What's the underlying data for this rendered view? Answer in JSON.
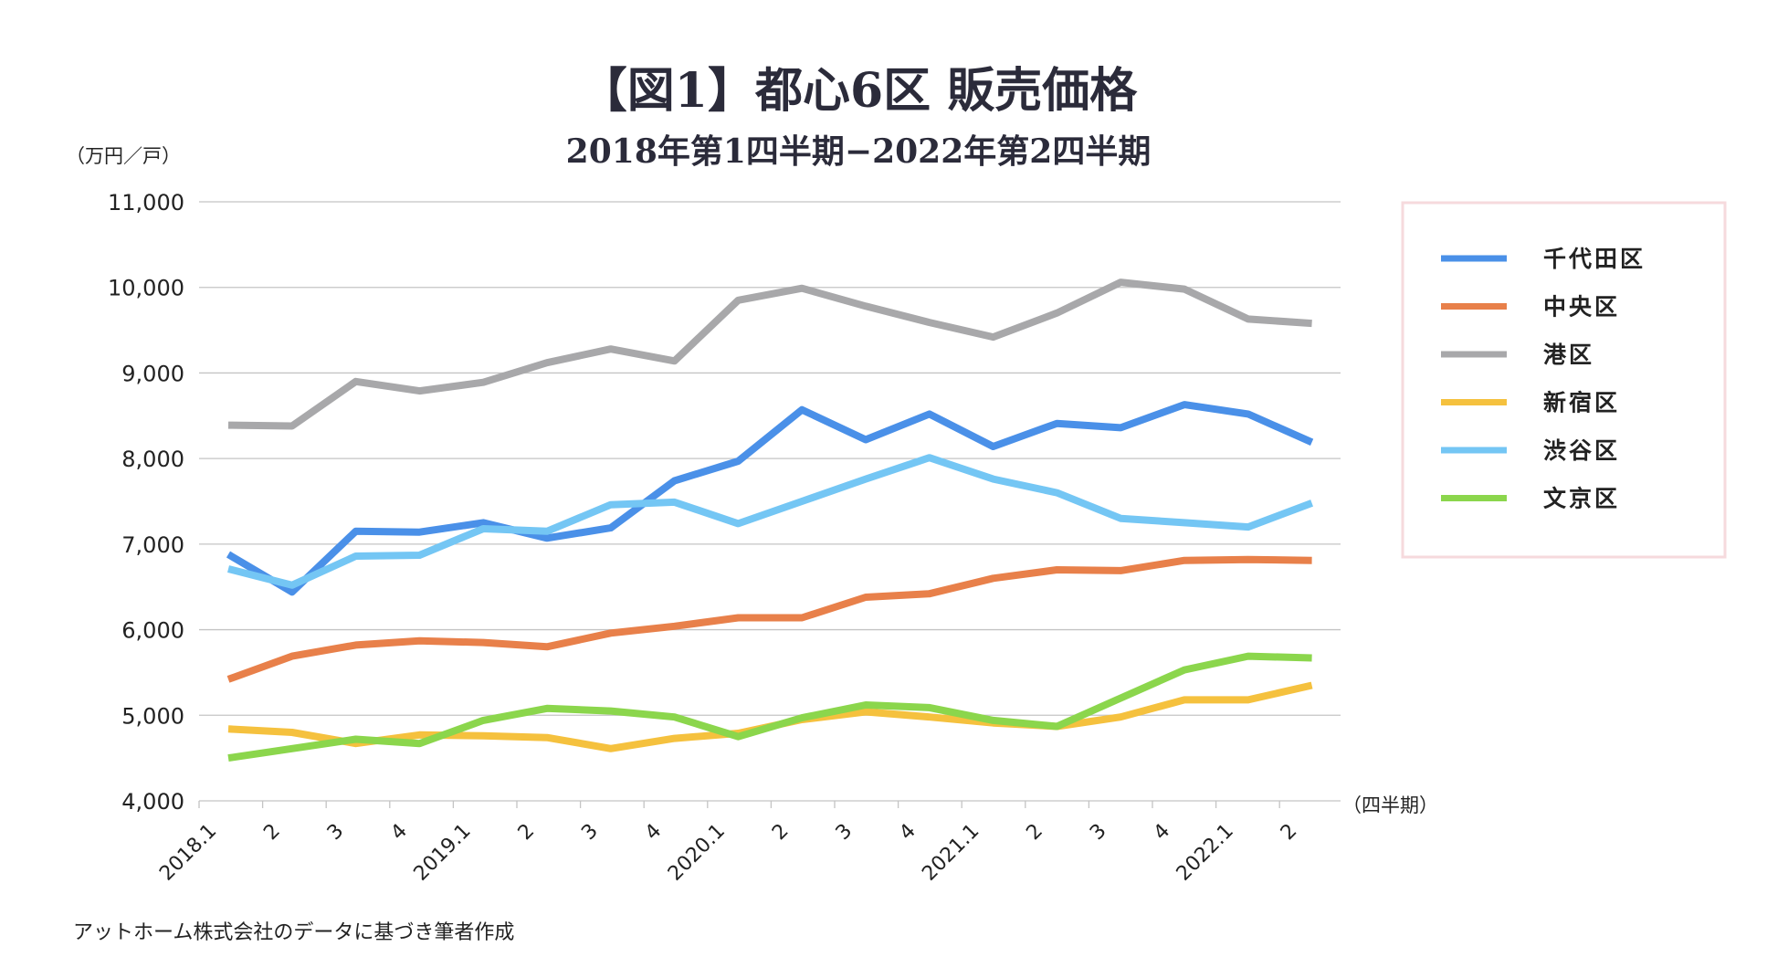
{
  "chart_data": {
    "type": "line",
    "title": "【図1】都心6区 販売価格",
    "subtitle": "2018年第1四半期−2022年第2四半期",
    "ylabel": "（万円／戸）",
    "xlabel": "（四半期）",
    "ylim": [
      4000,
      11000
    ],
    "yticks": [
      4000,
      5000,
      6000,
      7000,
      8000,
      9000,
      10000,
      11000
    ],
    "ytick_labels": [
      "4,000",
      "5,000",
      "6,000",
      "7,000",
      "8,000",
      "9,000",
      "10,000",
      "11,000"
    ],
    "categories": [
      "2018.1",
      "2",
      "3",
      "4",
      "2019.1",
      "2",
      "3",
      "4",
      "2020.1",
      "2",
      "3",
      "4",
      "2021.1",
      "2",
      "3",
      "4",
      "2022.1",
      "2"
    ],
    "grid": true,
    "legend_position": "right",
    "series": [
      {
        "name": "千代田区",
        "color": "#4a90e8",
        "values": [
          6880,
          6440,
          7150,
          7140,
          7250,
          7070,
          7190,
          7740,
          7970,
          8570,
          8220,
          8520,
          8140,
          8410,
          8360,
          8630,
          8520,
          8190
        ]
      },
      {
        "name": "中央区",
        "color": "#e8804a",
        "values": [
          5420,
          5690,
          5820,
          5870,
          5850,
          5800,
          5960,
          6040,
          6140,
          6140,
          6380,
          6420,
          6600,
          6700,
          6690,
          6810,
          6820,
          6810
        ]
      },
      {
        "name": "港区",
        "color": "#a8a8aa",
        "values": [
          8390,
          8380,
          8900,
          8790,
          8890,
          9120,
          9280,
          9140,
          9850,
          9990,
          9780,
          9590,
          9420,
          9700,
          10060,
          9980,
          9630,
          9580
        ]
      },
      {
        "name": "新宿区",
        "color": "#f5c13e",
        "values": [
          4840,
          4800,
          4670,
          4770,
          4760,
          4740,
          4610,
          4730,
          4790,
          4950,
          5040,
          4980,
          4910,
          4870,
          4980,
          5180,
          5180,
          5350
        ]
      },
      {
        "name": "渋谷区",
        "color": "#74c6f4",
        "values": [
          6710,
          6520,
          6860,
          6870,
          7180,
          7150,
          7460,
          7490,
          7240,
          7500,
          7760,
          8010,
          7760,
          7600,
          7300,
          7250,
          7200,
          7480
        ]
      },
      {
        "name": "文京区",
        "color": "#8bd64c",
        "values": [
          4500,
          4610,
          4720,
          4670,
          4940,
          5080,
          5050,
          4980,
          4750,
          4970,
          5120,
          5090,
          4940,
          4870,
          5200,
          5530,
          5690,
          5670
        ]
      }
    ]
  },
  "source": "アットホーム株式会社のデータに基づき筆者作成"
}
